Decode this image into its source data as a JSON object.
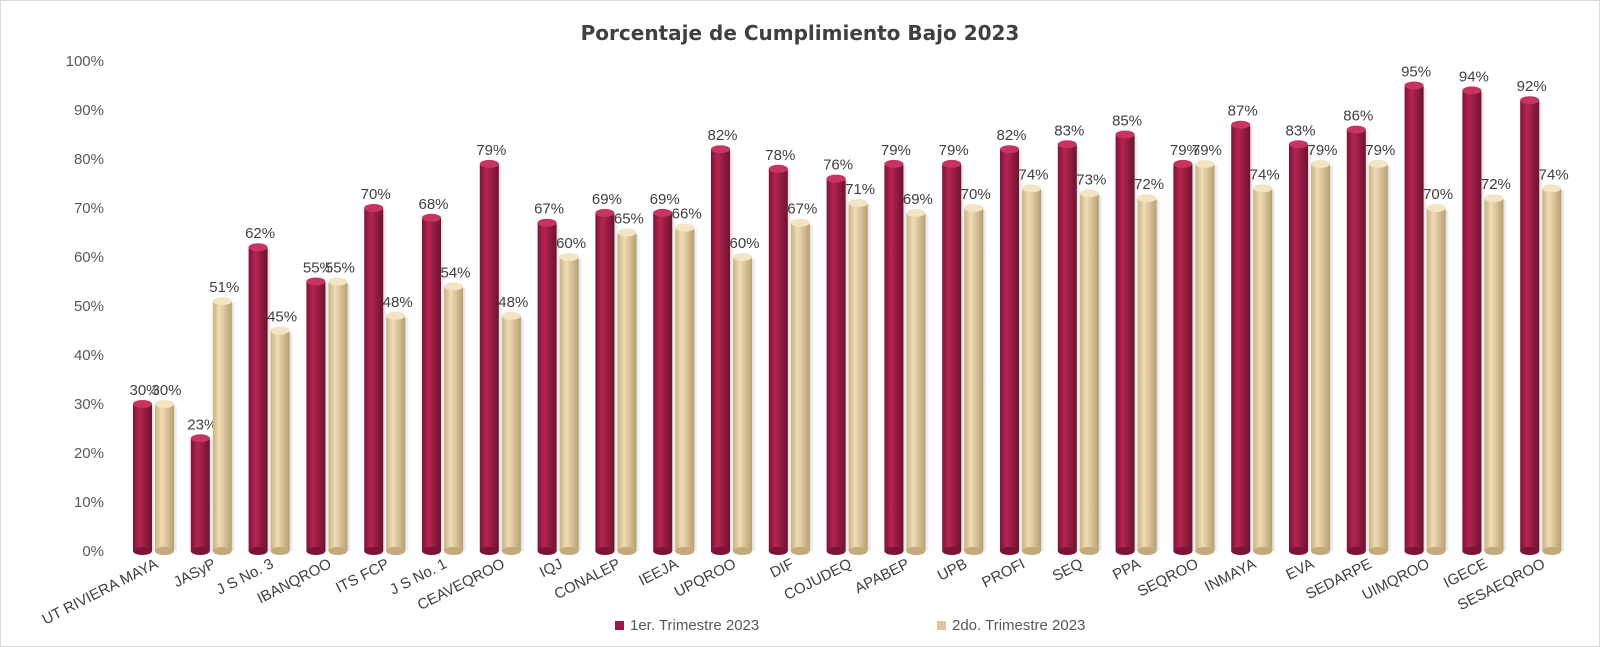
{
  "chart_data": {
    "type": "bar",
    "title": "Porcentaje de Cumplimiento Bajo 2023",
    "xlabel": "",
    "ylabel": "",
    "ylim": [
      0,
      100
    ],
    "y_ticks": [
      "0%",
      "10%",
      "20%",
      "30%",
      "40%",
      "50%",
      "60%",
      "70%",
      "80%",
      "90%",
      "100%"
    ],
    "grid": false,
    "legend_position": "bottom",
    "categories": [
      "UT RIVIERA MAYA",
      "JASyP",
      "J S No. 3",
      "IBANQROO",
      "ITS FCP",
      "J S No. 1",
      "CEAVEQROO",
      "IQJ",
      "CONALEP",
      "IEEJA",
      "UPQROO",
      "DIF",
      "COJUDEQ",
      "APABEP",
      "UPB",
      "PROFI",
      "SEQ",
      "PPA",
      "SEQROO",
      "INMAYA",
      "EVA",
      "SEDARPE",
      "UIMQROO",
      "IGECE",
      "SESAEQROO"
    ],
    "series": [
      {
        "name": "1er. Trimestre 2023",
        "color": "#9b1b45",
        "values": [
          30,
          23,
          62,
          55,
          70,
          68,
          79,
          67,
          69,
          69,
          82,
          78,
          76,
          79,
          79,
          82,
          83,
          85,
          79,
          87,
          83,
          86,
          95,
          94,
          92
        ],
        "labels": [
          "30%",
          "23%",
          "62%",
          "55%",
          "70%",
          "68%",
          "79%",
          "67%",
          "69%",
          "69%",
          "82%",
          "78%",
          "76%",
          "79%",
          "79%",
          "82%",
          "83%",
          "85%",
          "79%",
          "87%",
          "83%",
          "86%",
          "95%",
          "94%",
          "92%"
        ]
      },
      {
        "name": "2do. Trimestre 2023",
        "color": "#dcc79c",
        "values": [
          30,
          51,
          45,
          55,
          48,
          54,
          48,
          60,
          65,
          66,
          60,
          67,
          71,
          69,
          70,
          74,
          73,
          72,
          79,
          74,
          79,
          79,
          70,
          72,
          74
        ],
        "labels": [
          "30%",
          "51%",
          "45%",
          "55%",
          "48%",
          "54%",
          "48%",
          "60%",
          "65%",
          "66%",
          "60%",
          "67%",
          "71%",
          "69%",
          "70%",
          "74%",
          "73%",
          "72%",
          "79%",
          "74%",
          "79%",
          "79%",
          "70%",
          "72%",
          "74%"
        ]
      }
    ]
  }
}
